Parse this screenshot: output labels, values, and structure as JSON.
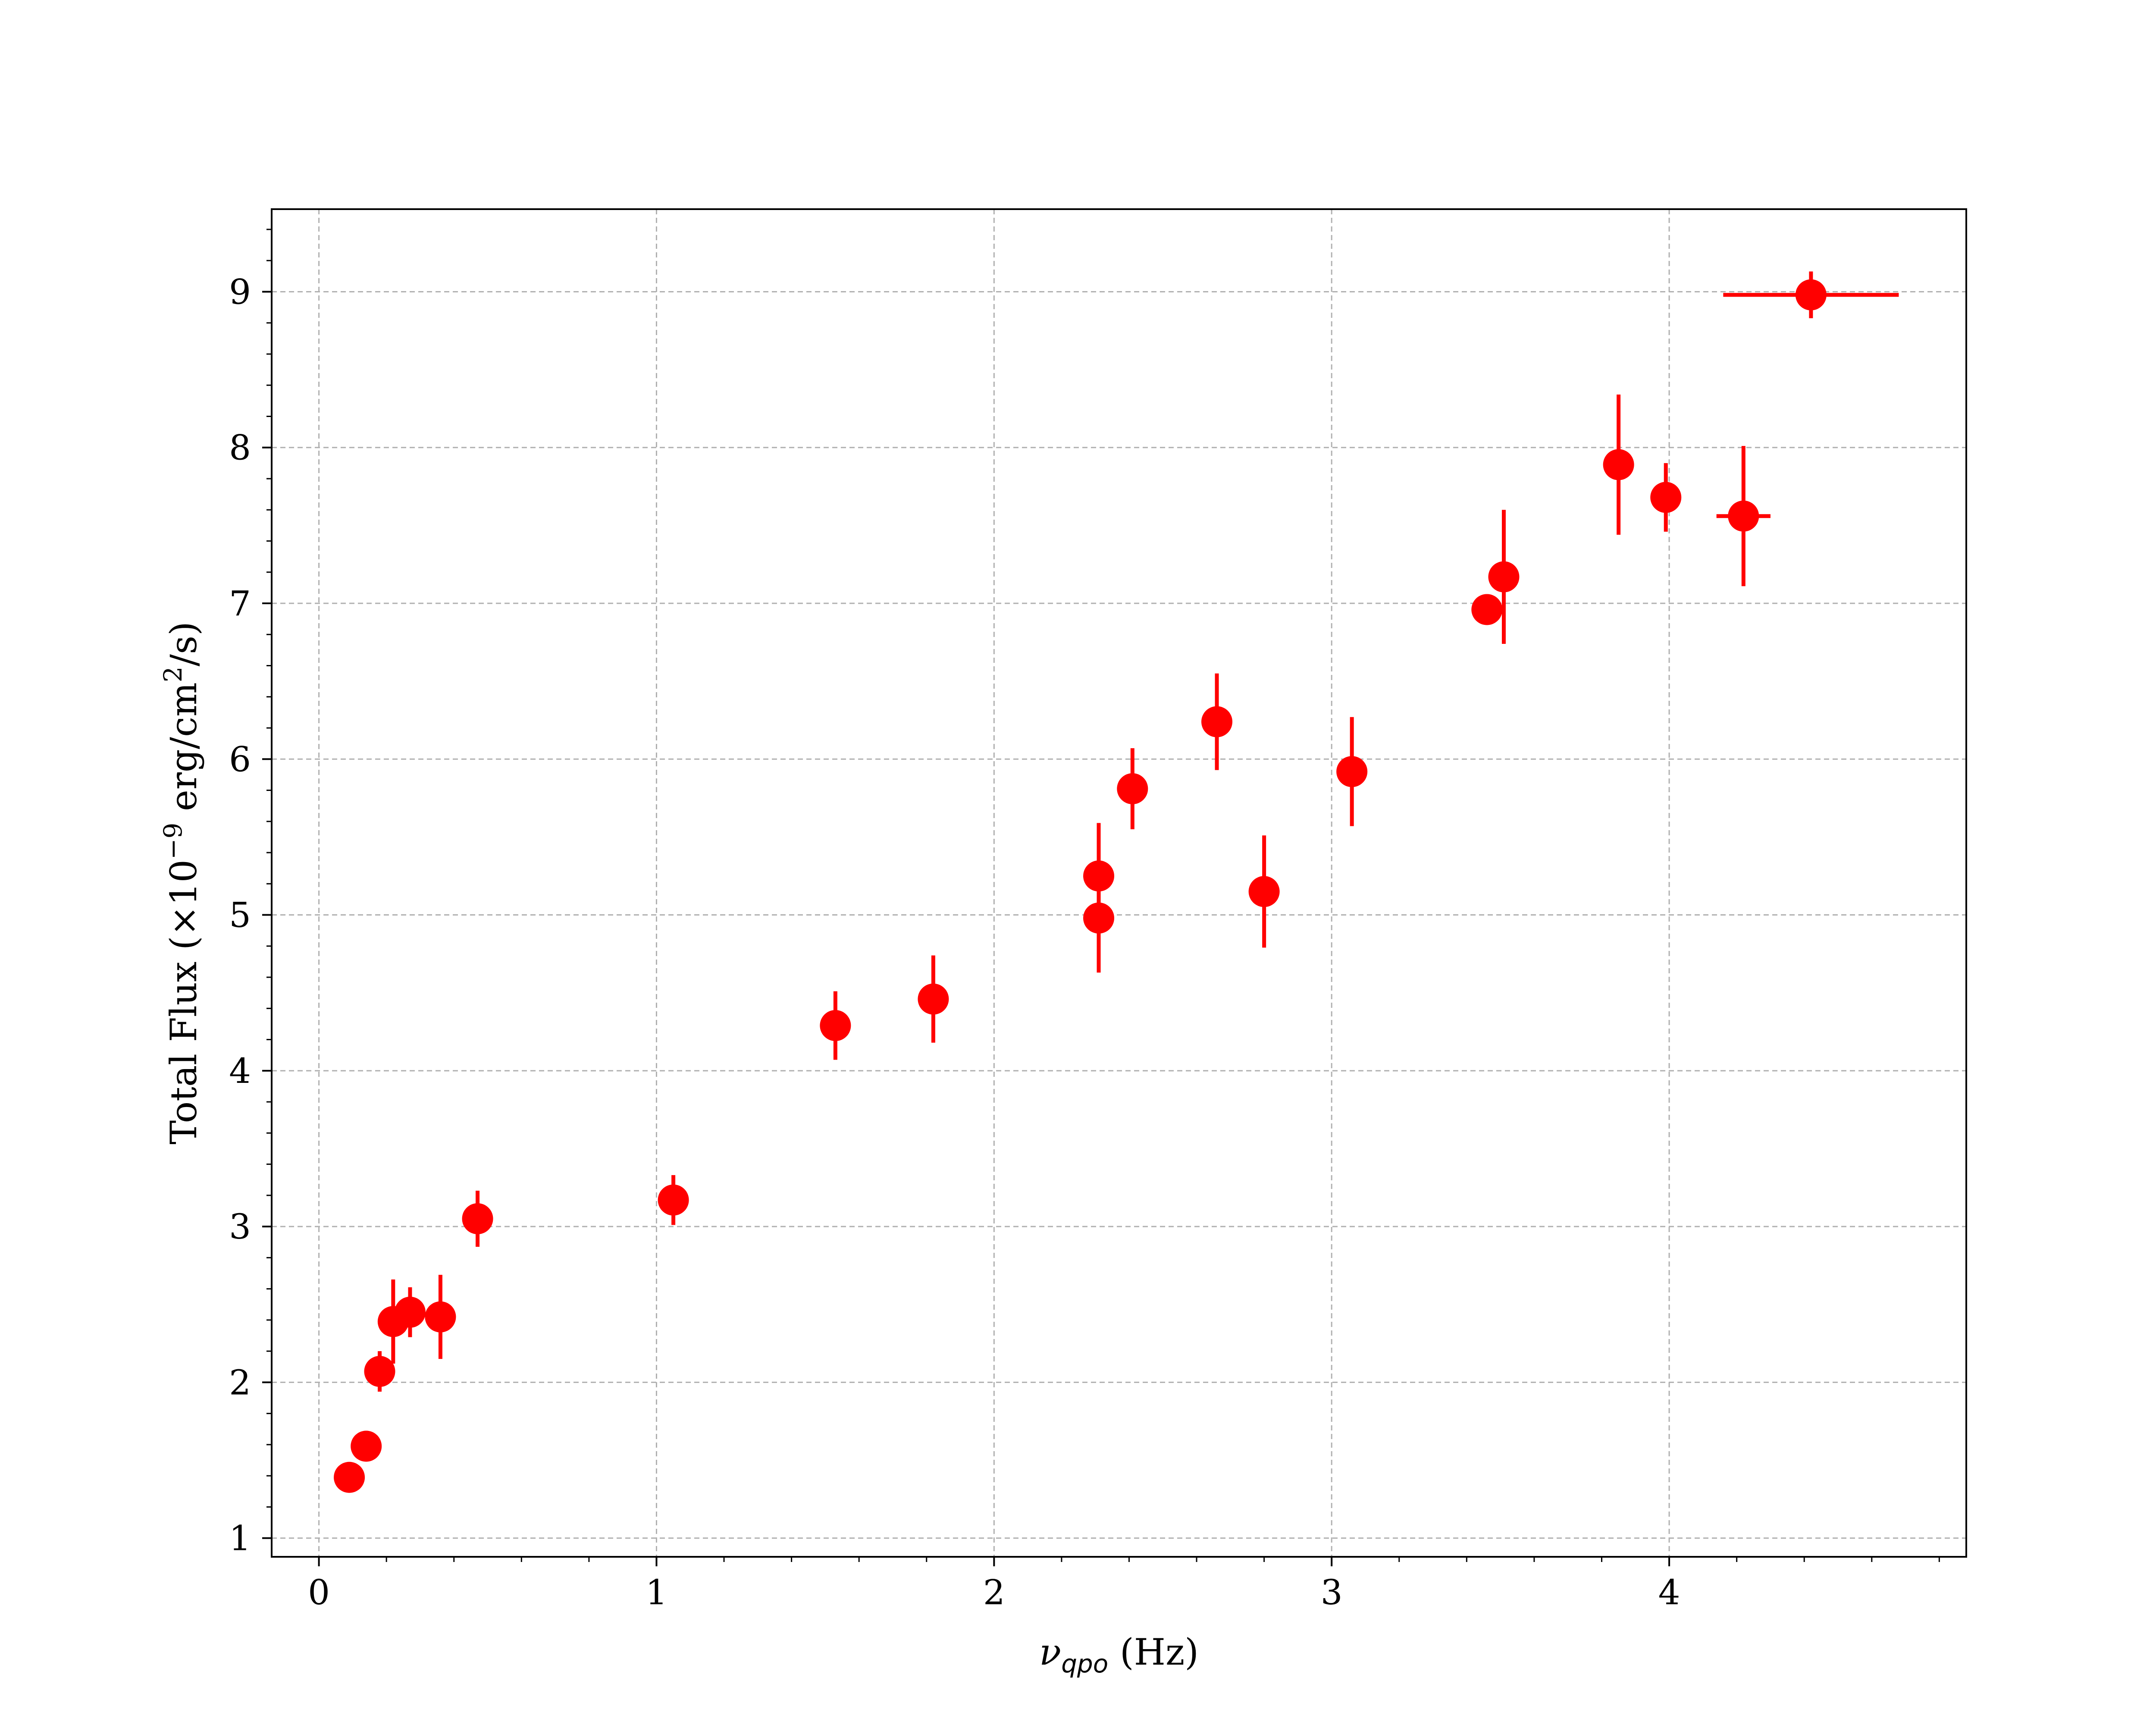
{
  "chart_data": {
    "type": "scatter",
    "title": "",
    "xlabel": {
      "symbol": "ν",
      "subscript": "qpo",
      "unit": " (Hz)"
    },
    "ylabel": {
      "prefix": "Total Flux (×10",
      "exponent": "−9",
      "middle": " erg/cm",
      "exponent2": "2",
      "suffix": "/s)"
    },
    "xlim": [
      -0.14,
      4.88
    ],
    "ylim": [
      0.88,
      9.53
    ],
    "xticks": [
      0,
      1,
      2,
      3,
      4
    ],
    "yticks": [
      1,
      2,
      3,
      4,
      5,
      6,
      7,
      8,
      9
    ],
    "grid": true,
    "marker_color": "#ff0000",
    "points": [
      {
        "x": 0.09,
        "y": 1.39,
        "yerr": 0.06,
        "xerr": 0
      },
      {
        "x": 0.14,
        "y": 1.59,
        "yerr": 0.06,
        "xerr": 0
      },
      {
        "x": 0.18,
        "y": 2.07,
        "yerr": 0.13,
        "xerr": 0
      },
      {
        "x": 0.22,
        "y": 2.39,
        "yerr": 0.27,
        "xerr": 0
      },
      {
        "x": 0.27,
        "y": 2.45,
        "yerr": 0.16,
        "xerr": 0
      },
      {
        "x": 0.36,
        "y": 2.42,
        "yerr": 0.27,
        "xerr": 0
      },
      {
        "x": 0.47,
        "y": 3.05,
        "yerr": 0.18,
        "xerr": 0
      },
      {
        "x": 1.05,
        "y": 3.17,
        "yerr": 0.16,
        "xerr": 0
      },
      {
        "x": 1.53,
        "y": 4.29,
        "yerr": 0.22,
        "xerr": 0
      },
      {
        "x": 1.82,
        "y": 4.46,
        "yerr": 0.28,
        "xerr": 0
      },
      {
        "x": 2.31,
        "y": 5.25,
        "yerr": 0.34,
        "xerr": 0
      },
      {
        "x": 2.31,
        "y": 4.98,
        "yerr": 0.35,
        "xerr": 0
      },
      {
        "x": 2.41,
        "y": 5.81,
        "yerr": 0.26,
        "xerr": 0
      },
      {
        "x": 2.66,
        "y": 6.24,
        "yerr": 0.31,
        "xerr": 0
      },
      {
        "x": 2.8,
        "y": 5.15,
        "yerr": 0.36,
        "xerr": 0
      },
      {
        "x": 3.06,
        "y": 5.92,
        "yerr": 0.35,
        "xerr": 0
      },
      {
        "x": 3.46,
        "y": 6.96,
        "yerr": 0.06,
        "xerr": 0
      },
      {
        "x": 3.51,
        "y": 7.17,
        "yerr": 0.43,
        "xerr": 0
      },
      {
        "x": 3.85,
        "y": 7.89,
        "yerr": 0.45,
        "xerr": 0
      },
      {
        "x": 3.99,
        "y": 7.68,
        "yerr": 0.22,
        "xerr": 0
      },
      {
        "x": 4.22,
        "y": 7.56,
        "yerr": 0.45,
        "xerr": 0.08
      },
      {
        "x": 4.42,
        "y": 8.98,
        "yerr": 0.15,
        "xerr": 0.26
      }
    ]
  }
}
